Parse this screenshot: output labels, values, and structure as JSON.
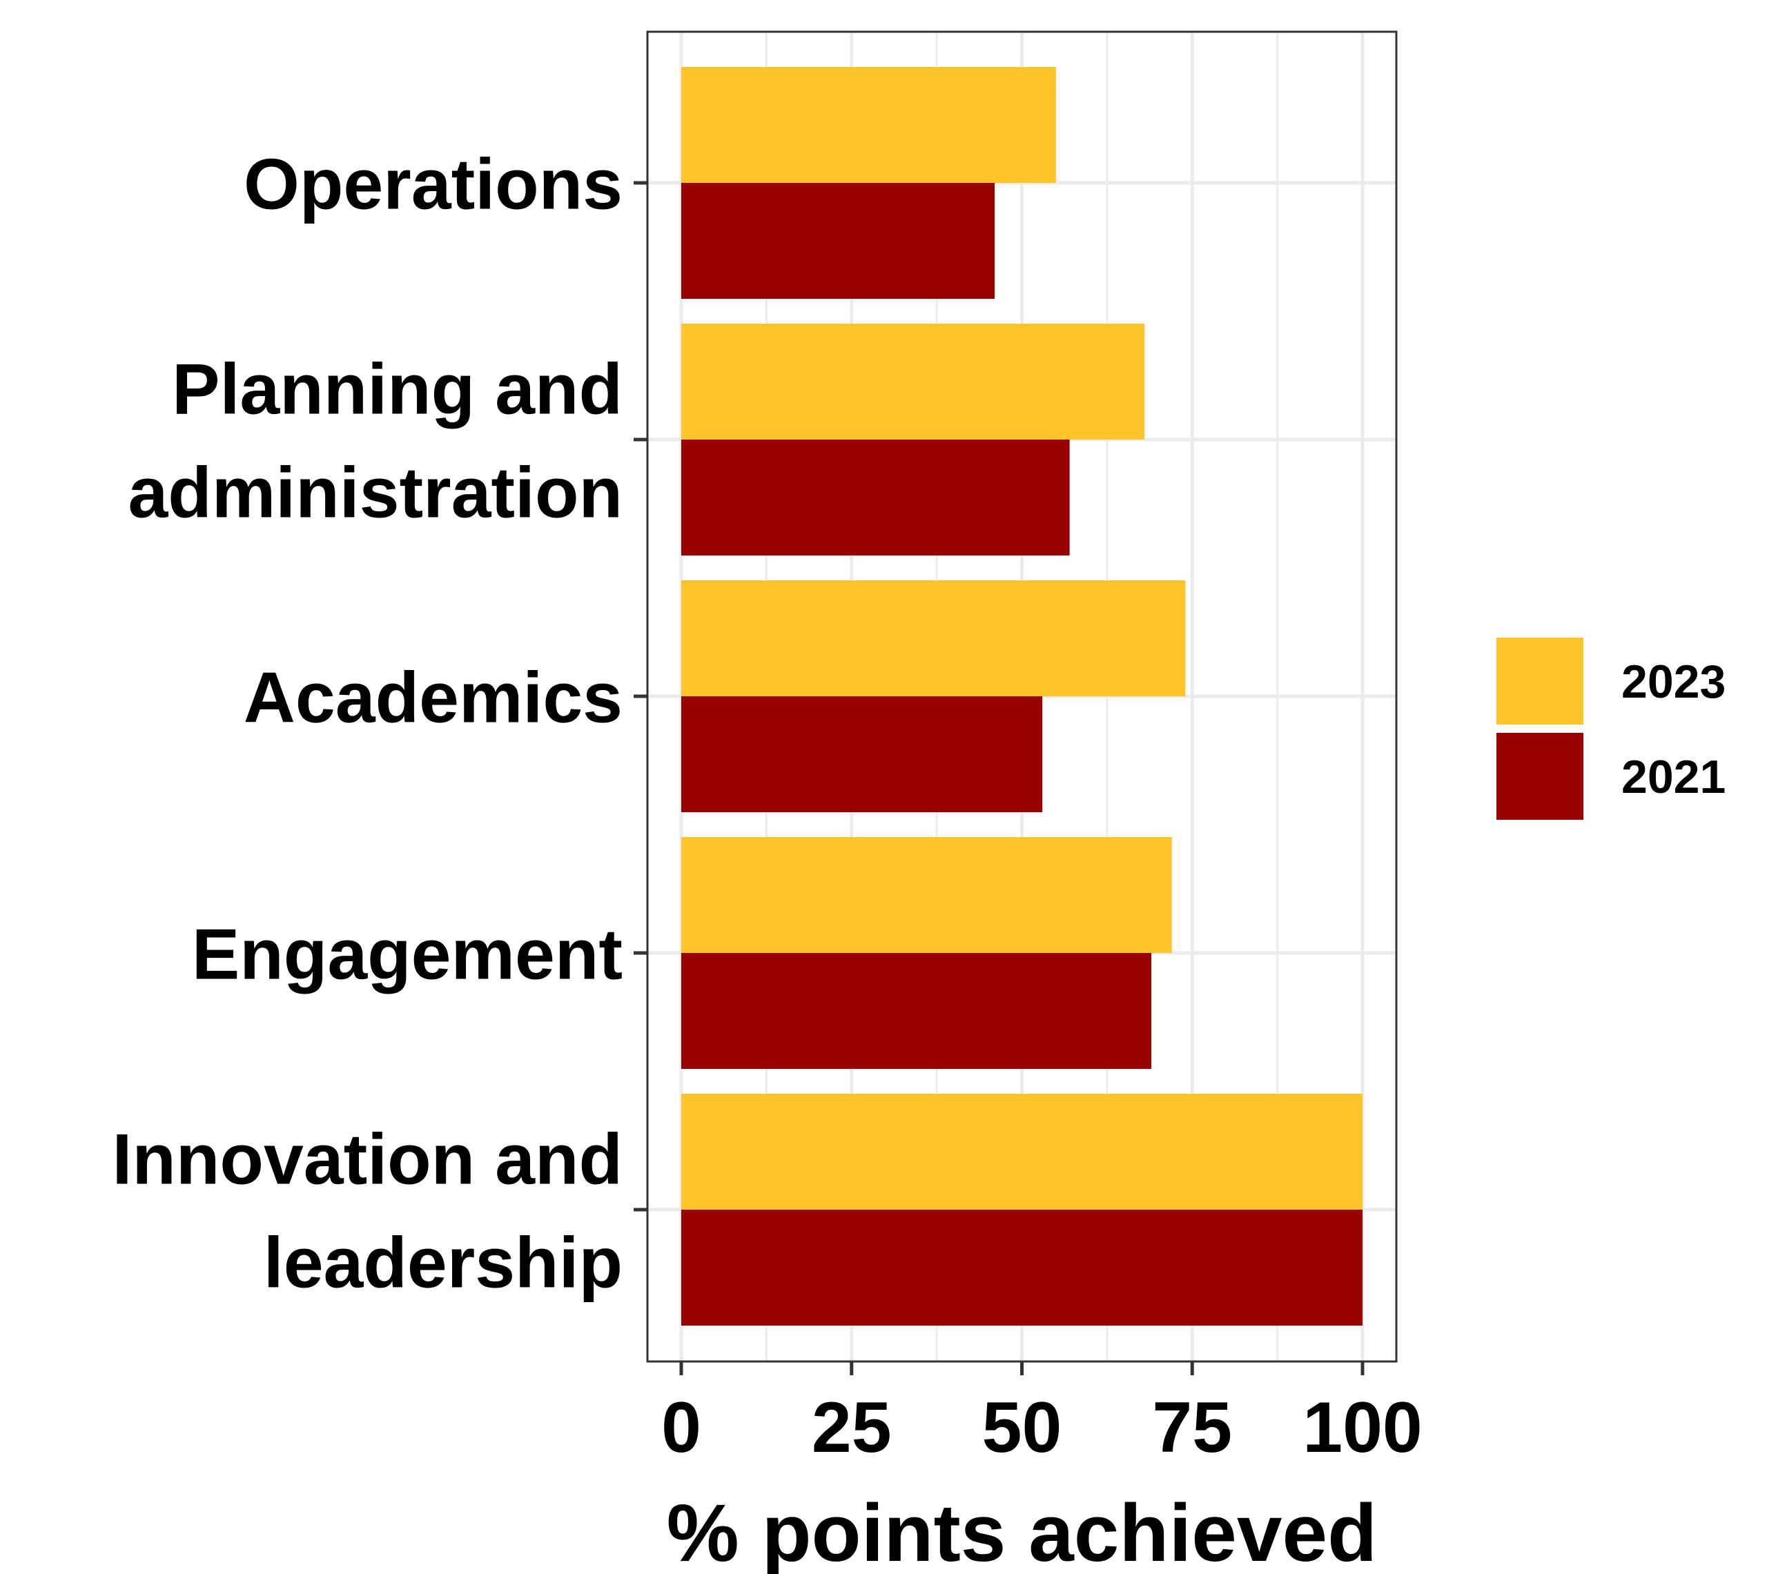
{
  "chart_data": {
    "type": "bar",
    "orientation": "horizontal",
    "categories": [
      [
        "Operations"
      ],
      [
        "Planning and",
        "administration"
      ],
      [
        "Academics"
      ],
      [
        "Engagement"
      ],
      [
        "Innovation and",
        "leadership"
      ]
    ],
    "series": [
      {
        "name": "2023",
        "color": "#FDC52B",
        "values": [
          55,
          68,
          74,
          72,
          100
        ]
      },
      {
        "name": "2021",
        "color": "#990000",
        "values": [
          46,
          57,
          53,
          69,
          100
        ]
      }
    ],
    "xlabel": "% points achieved",
    "xlim": [
      0,
      100
    ],
    "xticks": [
      "0",
      "25",
      "50",
      "75",
      "100"
    ],
    "grid": true,
    "legend_position": "right"
  }
}
